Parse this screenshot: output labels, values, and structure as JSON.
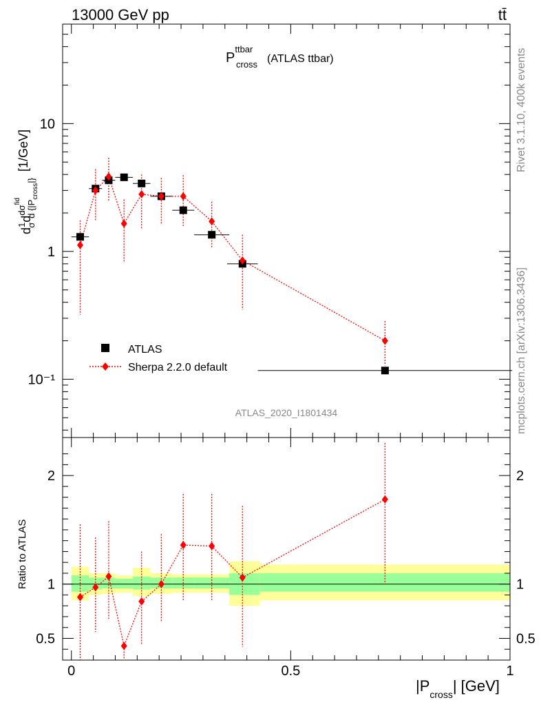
{
  "header": {
    "left": "13000 GeV pp",
    "right": "tt̄"
  },
  "side": {
    "rivet": "Rivet 3.1.10,  400k events",
    "mcplots": "mcplots.cern.ch [arXiv:1306.3436]"
  },
  "plot_title": {
    "main": "P",
    "sup": "ttbar",
    "sub": "cross",
    "rest": "(ATLAS ttbar)"
  },
  "watermark": "ATLAS_2020_I1801434",
  "y_label_main": "dσ/d{|P_cross|} [1/GeV] (normalized, 1/σ)",
  "ratio_ylabel": "Ratio to ATLAS",
  "x_label": {
    "pre": "|P",
    "sub": "cross",
    "post": "| [GeV]"
  },
  "legend": [
    {
      "label": "ATLAS",
      "color": "#000000",
      "marker": "square"
    },
    {
      "label": "Sherpa 2.2.0 default",
      "color": "#ff0000",
      "marker": "diamond"
    }
  ],
  "chart_data": [
    {
      "type": "scatter",
      "panel": "main",
      "yscale": "log",
      "xlim": [
        -0.02,
        1.0
      ],
      "ylim": [
        0.035,
        60
      ],
      "x_ticks": [
        "0",
        "0.5",
        "1"
      ],
      "y_tick_labels": [
        "10⁻¹",
        "1",
        "10"
      ],
      "series": [
        {
          "name": "ATLAS",
          "color": "#000000",
          "x": [
            0.02,
            0.055,
            0.085,
            0.12,
            0.16,
            0.205,
            0.255,
            0.32,
            0.39,
            0.715
          ],
          "y": [
            1.3,
            3.1,
            3.6,
            3.8,
            3.4,
            2.7,
            2.1,
            1.35,
            0.8,
            0.117
          ],
          "xerr": [
            0.02,
            0.015,
            0.015,
            0.02,
            0.02,
            0.025,
            0.025,
            0.04,
            0.035,
            0.29
          ]
        },
        {
          "name": "Sherpa 2.2.0 default",
          "color": "#ff0000",
          "x": [
            0.02,
            0.055,
            0.085,
            0.12,
            0.16,
            0.205,
            0.255,
            0.32,
            0.39,
            0.715
          ],
          "y": [
            1.12,
            3.0,
            3.85,
            1.65,
            2.8,
            2.7,
            2.7,
            1.72,
            0.85,
            0.2
          ],
          "ylow": [
            0.32,
            1.75,
            2.5,
            0.82,
            1.5,
            1.65,
            1.58,
            1.08,
            0.35,
            0.128
          ],
          "yhigh": [
            1.75,
            4.4,
            5.4,
            2.55,
            4.0,
            3.75,
            3.95,
            2.45,
            1.35,
            0.285
          ]
        }
      ]
    },
    {
      "type": "scatter",
      "panel": "ratio",
      "xlim": [
        -0.02,
        1.0
      ],
      "ylim": [
        0.3,
        2.35
      ],
      "x_ticks": [
        "0",
        "0.5",
        "1"
      ],
      "y_tick_labels": [
        "0.5",
        "1",
        "2"
      ],
      "bands": [
        {
          "x0": 0.0,
          "x1": 0.04,
          "g_lo": 0.93,
          "g_hi": 1.08,
          "y_lo": 0.85,
          "y_hi": 1.16
        },
        {
          "x0": 0.04,
          "x1": 0.07,
          "g_lo": 0.95,
          "g_hi": 1.06,
          "y_lo": 0.9,
          "y_hi": 1.1
        },
        {
          "x0": 0.07,
          "x1": 0.1,
          "g_lo": 0.96,
          "g_hi": 1.06,
          "y_lo": 0.91,
          "y_hi": 1.1
        },
        {
          "x0": 0.1,
          "x1": 0.14,
          "g_lo": 0.96,
          "g_hi": 1.05,
          "y_lo": 0.92,
          "y_hi": 1.08
        },
        {
          "x0": 0.14,
          "x1": 0.18,
          "g_lo": 0.95,
          "g_hi": 1.07,
          "y_lo": 0.89,
          "y_hi": 1.15
        },
        {
          "x0": 0.18,
          "x1": 0.23,
          "g_lo": 0.96,
          "g_hi": 1.06,
          "y_lo": 0.91,
          "y_hi": 1.1
        },
        {
          "x0": 0.23,
          "x1": 0.28,
          "g_lo": 0.96,
          "g_hi": 1.06,
          "y_lo": 0.92,
          "y_hi": 1.09
        },
        {
          "x0": 0.28,
          "x1": 0.36,
          "g_lo": 0.96,
          "g_hi": 1.06,
          "y_lo": 0.92,
          "y_hi": 1.09
        },
        {
          "x0": 0.36,
          "x1": 0.43,
          "g_lo": 0.9,
          "g_hi": 1.1,
          "y_lo": 0.8,
          "y_hi": 1.21
        },
        {
          "x0": 0.43,
          "x1": 1.0,
          "g_lo": 0.93,
          "g_hi": 1.1,
          "y_lo": 0.85,
          "y_hi": 1.18
        }
      ],
      "series": [
        {
          "name": "Sherpa 2.2.0 default",
          "color": "#ff0000",
          "x": [
            0.02,
            0.055,
            0.085,
            0.12,
            0.16,
            0.205,
            0.255,
            0.32,
            0.39,
            0.715
          ],
          "y": [
            0.88,
            0.97,
            1.07,
            0.43,
            0.84,
            1.0,
            1.36,
            1.35,
            1.06,
            1.78
          ],
          "ylow": [
            0.3,
            0.56,
            0.68,
            0.3,
            0.44,
            0.66,
            0.84,
            0.84,
            0.42,
            1.0
          ],
          "yhigh": [
            1.55,
            1.43,
            1.58,
            0.43,
            1.3,
            1.46,
            1.83,
            1.83,
            1.72,
            2.3
          ]
        }
      ]
    }
  ]
}
